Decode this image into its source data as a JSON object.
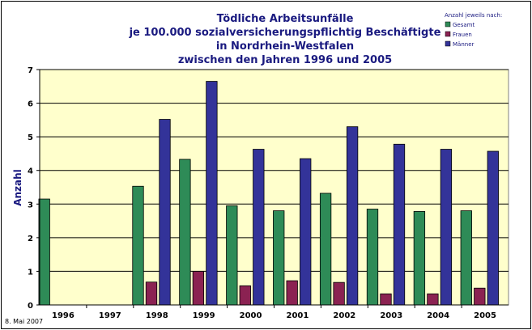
{
  "chart_data": {
    "type": "bar",
    "title_lines": [
      "Tödliche Arbeitsunfälle",
      "je 100.000 sozialversicherungspflichtig Beschäftigte",
      "in Nordrhein-Westfalen",
      "zwischen den Jahren 1996 und 2005"
    ],
    "ylabel": "Anzahl",
    "xlabel": "",
    "ylim": [
      0,
      7
    ],
    "yticks": [
      "0",
      "1",
      "2",
      "3",
      "4",
      "5",
      "6",
      "7"
    ],
    "grid": true,
    "legend_position": "top-right",
    "legend_title": "Anzahl jeweils nach:",
    "categories": [
      "1996",
      "1997",
      "1998",
      "1999",
      "2000",
      "2001",
      "2002",
      "2003",
      "2004",
      "2005"
    ],
    "series": [
      {
        "name": "Gesamt",
        "color": "#2e8b57",
        "values": [
          3.15,
          null,
          3.53,
          4.33,
          2.95,
          2.8,
          3.32,
          2.85,
          2.78,
          2.8
        ]
      },
      {
        "name": "Frauen",
        "color": "#8b2252",
        "values": [
          null,
          null,
          0.68,
          1.0,
          0.57,
          0.72,
          0.67,
          0.33,
          0.33,
          0.5
        ]
      },
      {
        "name": "Männer",
        "color": "#333399",
        "values": [
          null,
          null,
          5.52,
          6.65,
          4.63,
          4.35,
          5.3,
          4.78,
          4.63,
          4.57
        ]
      }
    ],
    "plot_background": "#ffffcc",
    "footnote": "8. Mai 2007"
  }
}
